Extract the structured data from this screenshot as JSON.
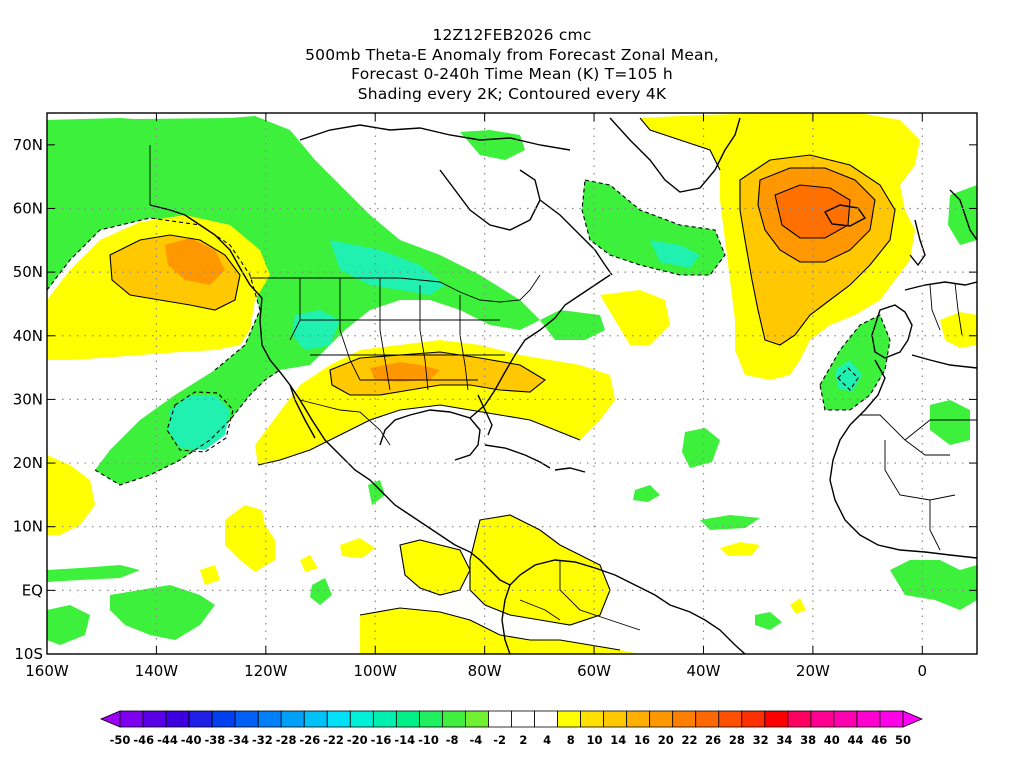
{
  "header": {
    "line1": "12Z12FEB2026 cmc",
    "line2": "500mb Theta-E Anomaly from Forecast Zonal Mean,",
    "line3": "Forecast 0-240h Time Mean (K) T=105 h",
    "line4": "Shading every 2K; Contoured every 4K"
  },
  "map": {
    "lat_labels": [
      "70N",
      "60N",
      "50N",
      "40N",
      "30N",
      "20N",
      "10N",
      "EQ",
      "10S"
    ],
    "lat_values": [
      70,
      60,
      50,
      40,
      30,
      20,
      10,
      0,
      -10
    ],
    "lon_labels": [
      "160W",
      "140W",
      "120W",
      "100W",
      "80W",
      "60W",
      "40W",
      "20W",
      "0"
    ],
    "lon_values": [
      -160,
      -140,
      -120,
      -100,
      -80,
      -60,
      -40,
      -20,
      0
    ],
    "lon_range": [
      -160,
      10
    ],
    "lat_range": [
      -10,
      75
    ],
    "gridlines": "dotted"
  },
  "colorbar": {
    "labels": [
      "-50",
      "-46",
      "-44",
      "-40",
      "-38",
      "-34",
      "-32",
      "-28",
      "-26",
      "-22",
      "-20",
      "-16",
      "-14",
      "-10",
      "-8",
      "-4",
      "-2",
      "2",
      "4",
      "8",
      "10",
      "14",
      "16",
      "20",
      "22",
      "26",
      "28",
      "32",
      "34",
      "38",
      "40",
      "44",
      "46",
      "50"
    ],
    "colors": [
      "#9e00f5",
      "#7d00f0",
      "#5a00e6",
      "#3d00e0",
      "#1f1fe8",
      "#0040f0",
      "#0060f5",
      "#0080f8",
      "#00a0f8",
      "#00c0f8",
      "#00e0f8",
      "#00f0d8",
      "#00f0b0",
      "#00f088",
      "#20f060",
      "#40f040",
      "#70f030",
      "#ffffff",
      "#ffffff",
      "#ffffff",
      "#ffff00",
      "#ffe000",
      "#ffc800",
      "#ffb000",
      "#ff9800",
      "#ff8000",
      "#ff6800",
      "#ff5000",
      "#ff3000",
      "#ff0000",
      "#ff0060",
      "#ff0090",
      "#ff00b0",
      "#ff00d0",
      "#ff00e8",
      "#ff00f8"
    ]
  }
}
